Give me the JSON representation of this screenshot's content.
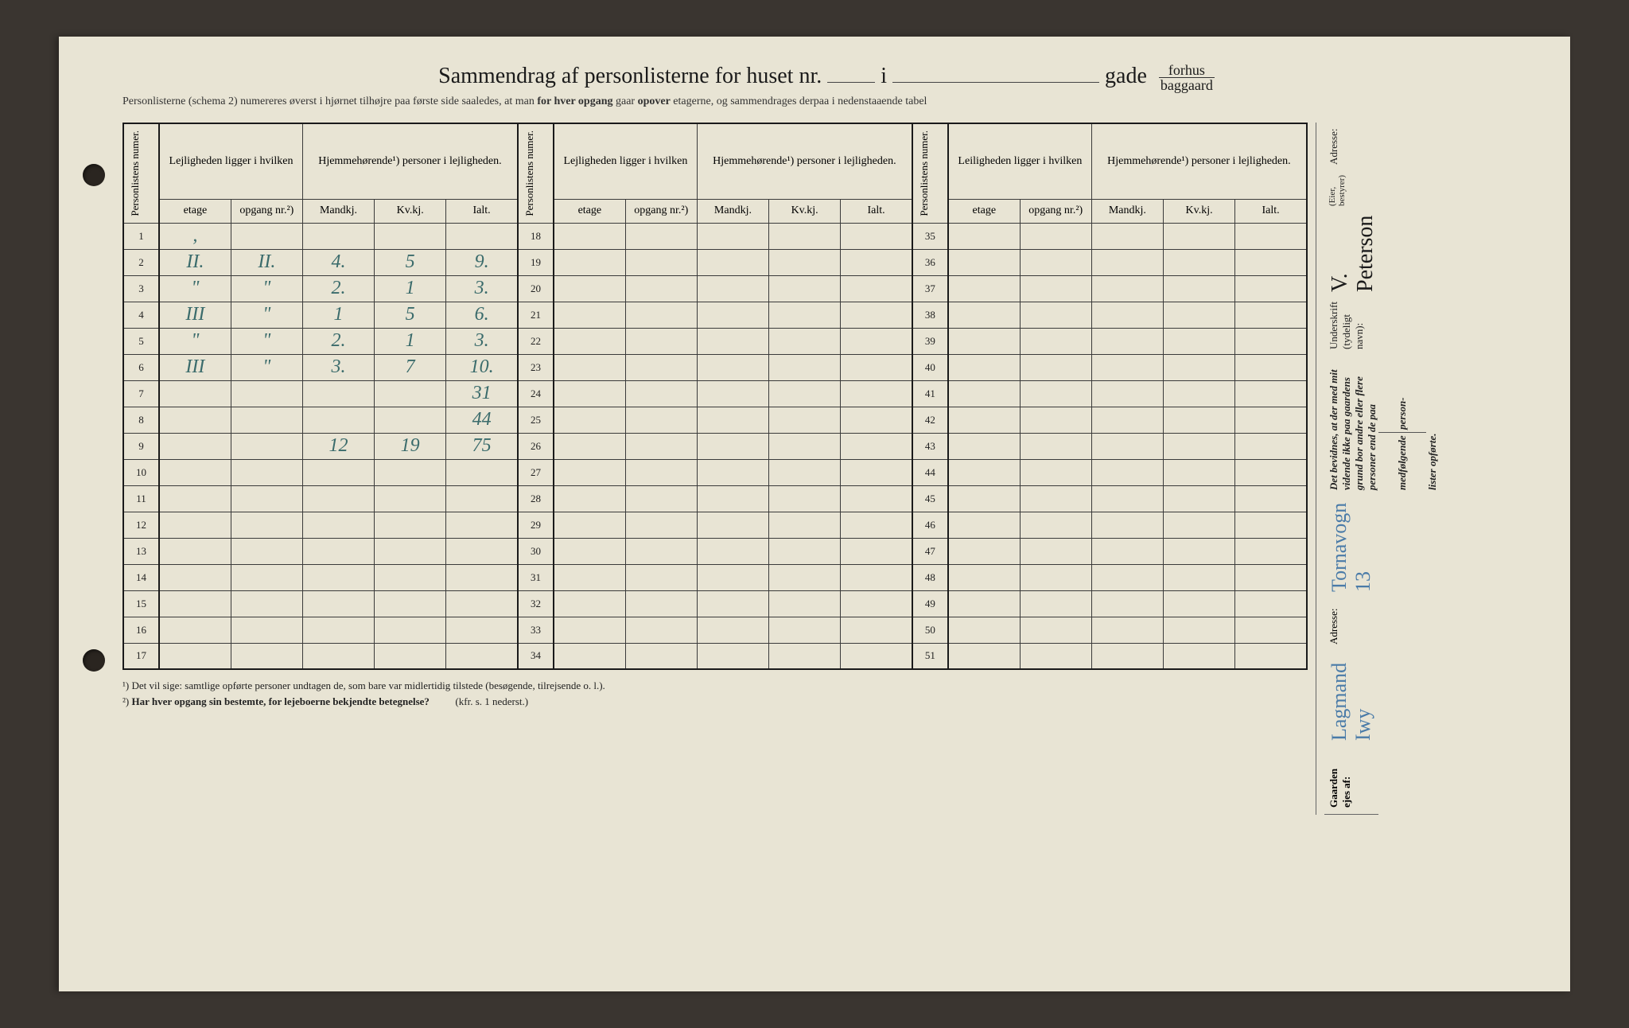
{
  "title": {
    "main": "Sammendrag af personlisterne for huset nr.",
    "i": "i",
    "gade": "gade",
    "forhus": "forhus",
    "baggaard": "baggaard"
  },
  "subtitle": {
    "pre": "Personlisterne (schema 2) numereres øverst i hjørnet tilhøjre paa første side saaledes, at man ",
    "bold1": "for hver opgang",
    "mid": " gaar ",
    "bold2": "opover",
    "post": " etagerne, og sammendrages derpaa i nedenstaaende tabel"
  },
  "headers": {
    "personlistens_numer": "Personlistens numer.",
    "lejligheden": "Lejligheden ligger i hvilken",
    "leiligheden": "Leiligheden ligger i hvilken",
    "hjemmehorende": "Hjemmehørende¹) personer i lejligheden.",
    "etage": "etage",
    "opgang": "opgang nr.²)",
    "mandkj": "Mandkj.",
    "kvkj": "Kv.kj.",
    "ialt": "Ialt."
  },
  "rows_block1": [
    {
      "n": "1",
      "etage": ",",
      "opg": "",
      "m": "",
      "k": "",
      "i": ""
    },
    {
      "n": "2",
      "etage": "II.",
      "opg": "II.",
      "m": "4.",
      "k": "5",
      "i": "9."
    },
    {
      "n": "3",
      "etage": "\"",
      "opg": "\"",
      "m": "2.",
      "k": "1",
      "i": "3."
    },
    {
      "n": "4",
      "etage": "III",
      "opg": "\"",
      "m": "1",
      "k": "5",
      "i": "6."
    },
    {
      "n": "5",
      "etage": "\"",
      "opg": "\"",
      "m": "2.",
      "k": "1",
      "i": "3."
    },
    {
      "n": "6",
      "etage": "III",
      "opg": "\"",
      "m": "3.",
      "k": "7",
      "i": "10."
    },
    {
      "n": "7",
      "etage": "",
      "opg": "",
      "m": "",
      "k": "",
      "i": "31"
    },
    {
      "n": "8",
      "etage": "",
      "opg": "",
      "m": "",
      "k": "",
      "i": "44"
    },
    {
      "n": "9",
      "etage": "",
      "opg": "",
      "m": "12",
      "k": "19",
      "i": "75"
    },
    {
      "n": "10",
      "etage": "",
      "opg": "",
      "m": "",
      "k": "",
      "i": ""
    },
    {
      "n": "11",
      "etage": "",
      "opg": "",
      "m": "",
      "k": "",
      "i": ""
    },
    {
      "n": "12",
      "etage": "",
      "opg": "",
      "m": "",
      "k": "",
      "i": ""
    },
    {
      "n": "13",
      "etage": "",
      "opg": "",
      "m": "",
      "k": "",
      "i": ""
    },
    {
      "n": "14",
      "etage": "",
      "opg": "",
      "m": "",
      "k": "",
      "i": ""
    },
    {
      "n": "15",
      "etage": "",
      "opg": "",
      "m": "",
      "k": "",
      "i": ""
    },
    {
      "n": "16",
      "etage": "",
      "opg": "",
      "m": "",
      "k": "",
      "i": ""
    },
    {
      "n": "17",
      "etage": "",
      "opg": "",
      "m": "",
      "k": "",
      "i": ""
    }
  ],
  "rows_block2_nums": [
    "18",
    "19",
    "20",
    "21",
    "22",
    "23",
    "24",
    "25",
    "26",
    "27",
    "28",
    "29",
    "30",
    "31",
    "32",
    "33",
    "34"
  ],
  "rows_block3_nums": [
    "35",
    "36",
    "37",
    "38",
    "39",
    "40",
    "41",
    "42",
    "43",
    "44",
    "45",
    "46",
    "47",
    "48",
    "49",
    "50",
    "51"
  ],
  "footnotes": {
    "f1": "¹)  Det vil sige: samtlige opførte personer undtagen de, som bare var midlertidig tilstede (besøgende, tilrejsende o. l.).",
    "f2_pre": "²)  ",
    "f2_bold": "Har hver opgang sin bestemte, for lejeboerne bekjendte betegnelse?",
    "f2_post": "(kfr. s. 1 nederst.)"
  },
  "right_panel": {
    "attest": "Det bevidnes, at der med mit vidende ikke paa gaardens grund bor andre eller flere personer end de paa medfølgende",
    "person": "person-",
    "lister": "lister opførte.",
    "underskrift_label": "Underskrift (tydeligt navn):",
    "signature": "V. Peterson",
    "eier": "(Eier, bestyrer)",
    "adresse_label": "Adresse:",
    "gaarden_label": "Gaarden ejes af:",
    "owner": "Lagmand Iwy",
    "owner_addr": "Tornavogn 13"
  },
  "colors": {
    "paper": "#e8e4d4",
    "ink": "#1a1a1a",
    "handwriting_teal": "#3a6b6b",
    "handwriting_blue": "#4a7ba8",
    "border": "#3a3a3a"
  }
}
